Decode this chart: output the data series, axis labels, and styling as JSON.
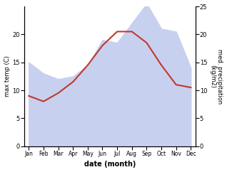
{
  "months": [
    "Jan",
    "Feb",
    "Mar",
    "Apr",
    "May",
    "Jun",
    "Jul",
    "Aug",
    "Sep",
    "Oct",
    "Nov",
    "Dec"
  ],
  "max_temp": [
    9.0,
    8.0,
    9.5,
    11.5,
    14.5,
    18.0,
    20.5,
    20.5,
    18.5,
    14.5,
    11.0,
    10.5
  ],
  "precipitation": [
    15.0,
    13.0,
    12.0,
    12.5,
    14.5,
    19.0,
    18.5,
    22.0,
    25.5,
    21.0,
    20.5,
    14.0
  ],
  "temp_color": "#c0392b",
  "precip_fill_color": "#c8d0f0",
  "ylabel_left": "max temp (C)",
  "ylabel_right": "med. precipitation\n(kg/m2)",
  "xlabel": "date (month)",
  "ylim_left": [
    0,
    25
  ],
  "ylim_right": [
    0,
    25
  ],
  "yticks_left": [
    0,
    5,
    10,
    15,
    20
  ],
  "yticks_right": [
    0,
    5,
    10,
    15,
    20,
    25
  ],
  "background_color": "#ffffff"
}
